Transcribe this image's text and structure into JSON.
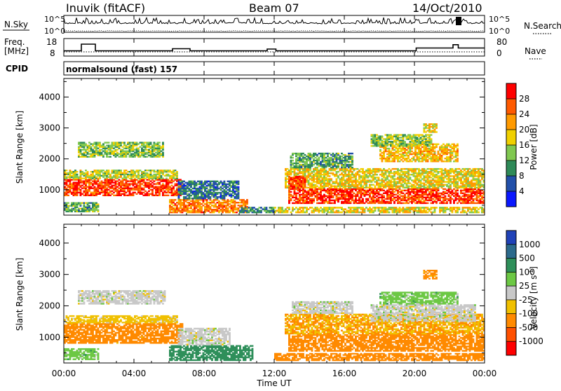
{
  "header": {
    "station": "Inuvik (fitACF)",
    "beam": "Beam 07",
    "date": "14/Oct/2010"
  },
  "nsky_panel": {
    "label": "N.Sky",
    "right_label": "N.Search",
    "left_ticks": [
      "10^5",
      "10^0"
    ],
    "right_ticks": [
      "10^5",
      "10^0"
    ]
  },
  "freq_panel": {
    "label_line1": "Freq.",
    "label_line2": "[MHz]",
    "right_label": "Nave",
    "left_ticks": [
      "18",
      "8"
    ],
    "right_ticks": [
      "80",
      "0"
    ]
  },
  "cpid_panel": {
    "label": "CPID",
    "mode": "normalsound (fast) 157"
  },
  "x_axis": {
    "label": "Time UT",
    "ticks": [
      "00:00",
      "04:00",
      "08:00",
      "12:00",
      "16:00",
      "20:00",
      "00:00"
    ]
  },
  "chart_data": [
    {
      "type": "heatmap",
      "name": "power",
      "ylabel": "Slant Range [km]",
      "ylim": [
        180,
        4600
      ],
      "yticks": [
        1000,
        2000,
        3000,
        4000
      ],
      "xlim": [
        0,
        24
      ],
      "colorbar": {
        "label": "Power [dB]",
        "tick_labels": [
          "4",
          "8",
          "12",
          "16",
          "20",
          "24",
          "28"
        ],
        "colors": [
          "#0a18ff",
          "#2250aa",
          "#2e8a58",
          "#80c850",
          "#f0d000",
          "#ff9a00",
          "#ff5a00",
          "#ff0000"
        ]
      },
      "bands": [
        {
          "t0": 0.0,
          "t1": 6.8,
          "r0": 800,
          "r1": 1350,
          "value": 28
        },
        {
          "t0": 0.0,
          "t1": 6.5,
          "r0": 1350,
          "r1": 1650,
          "value": 16
        },
        {
          "t0": 0.8,
          "t1": 5.7,
          "r0": 2050,
          "r1": 2550,
          "value": 14
        },
        {
          "t0": 0.0,
          "t1": 2.0,
          "r0": 280,
          "r1": 600,
          "value": 12
        },
        {
          "t0": 6.0,
          "t1": 10.5,
          "r0": 250,
          "r1": 700,
          "value": 24
        },
        {
          "t0": 6.5,
          "t1": 10.0,
          "r0": 700,
          "r1": 1300,
          "value": 8
        },
        {
          "t0": 10.0,
          "t1": 12.0,
          "r0": 250,
          "r1": 450,
          "value": 10
        },
        {
          "t0": 12.0,
          "t1": 24.0,
          "r0": 250,
          "r1": 450,
          "value": 18
        },
        {
          "t0": 12.8,
          "t1": 24.0,
          "r0": 550,
          "r1": 1050,
          "value": 28
        },
        {
          "t0": 12.6,
          "t1": 24.0,
          "r0": 1050,
          "r1": 1700,
          "value": 18
        },
        {
          "t0": 12.9,
          "t1": 16.5,
          "r0": 1700,
          "r1": 2200,
          "value": 12
        },
        {
          "t0": 18.0,
          "t1": 22.5,
          "r0": 1900,
          "r1": 2500,
          "value": 20
        },
        {
          "t0": 17.5,
          "t1": 21.0,
          "r0": 2400,
          "r1": 2800,
          "value": 14
        },
        {
          "t0": 20.5,
          "t1": 21.3,
          "r0": 2850,
          "r1": 3150,
          "value": 18
        },
        {
          "t0": 12.8,
          "t1": 13.8,
          "r0": 1050,
          "r1": 1450,
          "value": 28
        }
      ]
    },
    {
      "type": "heatmap",
      "name": "velocity",
      "ylabel": "Slant Range [km]",
      "ylim": [
        180,
        4600
      ],
      "yticks": [
        1000,
        2000,
        3000,
        4000
      ],
      "xlim": [
        0,
        24
      ],
      "colorbar": {
        "label": "Velocity [m s^-1]",
        "tick_labels": [
          "1000",
          "500",
          "100",
          "25",
          "-25",
          "-100",
          "-500",
          "-1000"
        ],
        "colors": [
          "#2042b8",
          "#2c6a8c",
          "#2e8f5a",
          "#6cc844",
          "#c8c8c8",
          "#f0c000",
          "#ff8a00",
          "#ff5000",
          "#ff0000"
        ]
      },
      "bands": [
        {
          "t0": 0.0,
          "t1": 6.8,
          "r0": 800,
          "r1": 1450,
          "value": -200
        },
        {
          "t0": 0.0,
          "t1": 6.5,
          "r0": 1450,
          "r1": 1700,
          "value": -50
        },
        {
          "t0": 0.8,
          "t1": 5.8,
          "r0": 2050,
          "r1": 2500,
          "value": 0
        },
        {
          "t0": 0.0,
          "t1": 2.0,
          "r0": 280,
          "r1": 650,
          "value": 60
        },
        {
          "t0": 6.0,
          "t1": 10.8,
          "r0": 250,
          "r1": 750,
          "value": 200
        },
        {
          "t0": 6.5,
          "t1": 9.5,
          "r0": 750,
          "r1": 1300,
          "value": 0
        },
        {
          "t0": 12.0,
          "t1": 24.0,
          "r0": 250,
          "r1": 500,
          "value": -300
        },
        {
          "t0": 12.8,
          "t1": 24.0,
          "r0": 550,
          "r1": 1100,
          "value": -300
        },
        {
          "t0": 12.6,
          "t1": 24.0,
          "r0": 1100,
          "r1": 1750,
          "value": -100
        },
        {
          "t0": 13.0,
          "t1": 16.5,
          "r0": 1750,
          "r1": 2150,
          "value": 0
        },
        {
          "t0": 17.5,
          "t1": 23.5,
          "r0": 1500,
          "r1": 2050,
          "value": 0
        },
        {
          "t0": 18.0,
          "t1": 22.5,
          "r0": 2050,
          "r1": 2450,
          "value": 60
        },
        {
          "t0": 20.5,
          "t1": 21.3,
          "r0": 2850,
          "r1": 3150,
          "value": -150
        }
      ]
    }
  ]
}
